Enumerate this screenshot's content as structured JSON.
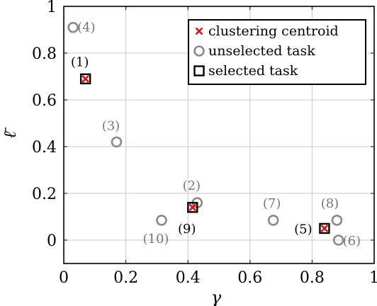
{
  "chart_data": {
    "type": "scatter",
    "xlabel": "γ",
    "ylabel": "ℓ̄",
    "xlim": [
      0,
      1
    ],
    "ylim": [
      -0.1,
      1
    ],
    "xticks": [
      "0",
      "0.2",
      "0.4",
      "0.6",
      "0.8",
      "1"
    ],
    "yticks": [
      "0",
      "0.2",
      "0.4",
      "0.6",
      "0.8",
      "1"
    ],
    "grid": true,
    "legend_position": "top-right",
    "legend": [
      {
        "name": "clustering centroid",
        "marker": "x",
        "color": "#e01010"
      },
      {
        "name": "unselected task",
        "marker": "circle",
        "color": "#8a8a8a"
      },
      {
        "name": "selected task",
        "marker": "square",
        "color": "#000000"
      }
    ],
    "points": [
      {
        "label": "(1)",
        "x": 0.07,
        "y": 0.69,
        "selected": true,
        "centroid": true
      },
      {
        "label": "(2)",
        "x": 0.43,
        "y": 0.16,
        "selected": false,
        "centroid": false
      },
      {
        "label": "(3)",
        "x": 0.17,
        "y": 0.42,
        "selected": false,
        "centroid": false
      },
      {
        "label": "(4)",
        "x": 0.03,
        "y": 0.91,
        "selected": false,
        "centroid": false
      },
      {
        "label": "(5)",
        "x": 0.84,
        "y": 0.05,
        "selected": true,
        "centroid": true
      },
      {
        "label": "(6)",
        "x": 0.885,
        "y": 0.0,
        "selected": false,
        "centroid": false
      },
      {
        "label": "(7)",
        "x": 0.675,
        "y": 0.085,
        "selected": false,
        "centroid": false
      },
      {
        "label": "(8)",
        "x": 0.88,
        "y": 0.085,
        "selected": false,
        "centroid": false
      },
      {
        "label": "(9)",
        "x": 0.415,
        "y": 0.14,
        "selected": true,
        "centroid": true
      },
      {
        "label": "(10)",
        "x": 0.315,
        "y": 0.085,
        "selected": false,
        "centroid": false
      }
    ],
    "colors": {
      "centroid": "#e01010",
      "unselected": "#8a8a8a",
      "selected": "#000000",
      "grid": "#c8c8c8"
    }
  }
}
